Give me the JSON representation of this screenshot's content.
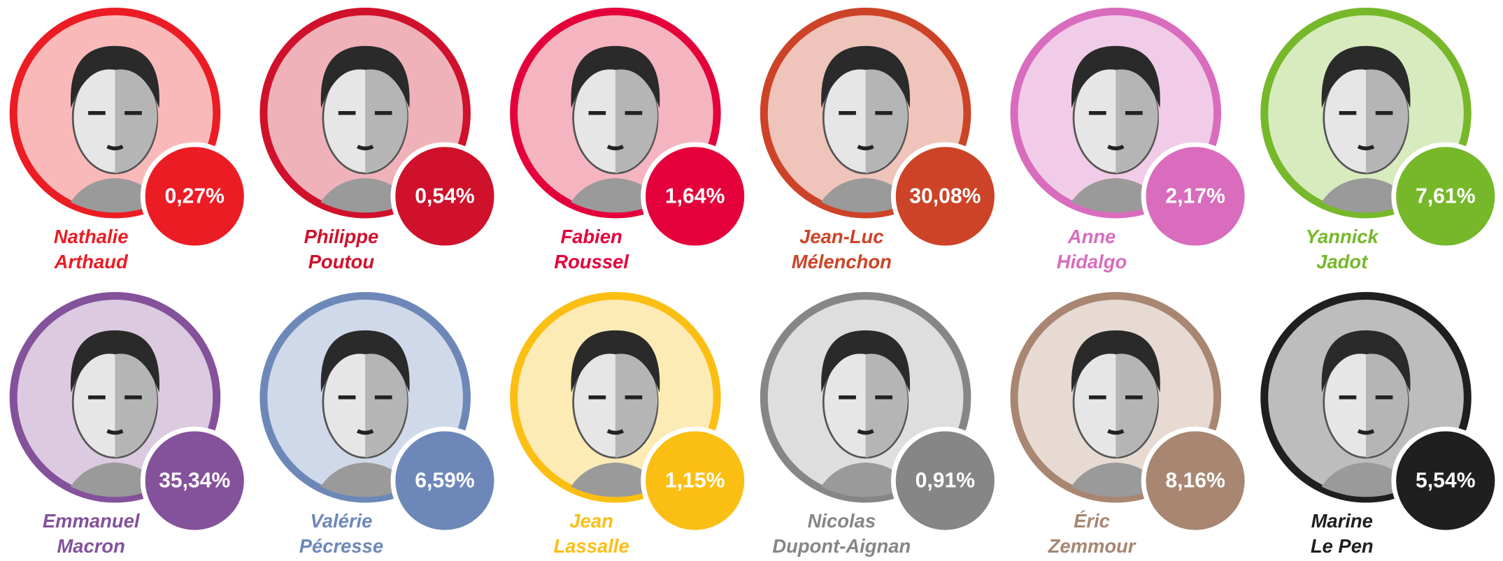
{
  "candidates": [
    {
      "first": "Nathalie",
      "last": "Arthaud",
      "share": "0,27%",
      "color": "#ec1c24",
      "fill": "#f9b9b9"
    },
    {
      "first": "Philippe",
      "last": "Poutou",
      "share": "0,54%",
      "color": "#d0112b",
      "fill": "#efb2b9"
    },
    {
      "first": "Fabien",
      "last": "Roussel",
      "share": "1,64%",
      "color": "#e4003a",
      "fill": "#f4b5c0"
    },
    {
      "first": "Jean-Luc",
      "last": "Mélenchon",
      "share": "30,08%",
      "color": "#cc4327",
      "fill": "#efc4ba"
    },
    {
      "first": "Anne",
      "last": "Hidalgo",
      "share": "2,17%",
      "color": "#d96cbd",
      "fill": "#f1cce8"
    },
    {
      "first": "Yannick",
      "last": "Jadot",
      "share": "7,61%",
      "color": "#76b82a",
      "fill": "#d7ebbe"
    },
    {
      "first": "Emmanuel",
      "last": "Macron",
      "share": "35,34%",
      "color": "#84519b",
      "fill": "#dccae0"
    },
    {
      "first": "Valérie",
      "last": "Pécresse",
      "share": "6,59%",
      "color": "#6d88b8",
      "fill": "#cfd9e9"
    },
    {
      "first": "Jean",
      "last": "Lassalle",
      "share": "1,15%",
      "color": "#fbbf14",
      "fill": "#fcebb5"
    },
    {
      "first": "Nicolas",
      "last": "Dupont-Aignan",
      "share": "0,91%",
      "color": "#868686",
      "fill": "#dedede"
    },
    {
      "first": "Éric",
      "last": "Zemmour",
      "share": "8,16%",
      "color": "#a88672",
      "fill": "#e7dad2"
    },
    {
      "first": "Marine",
      "last": "Le Pen",
      "share": "5,54%",
      "color": "#1f1f1f",
      "fill": "#bdbdbd"
    }
  ]
}
